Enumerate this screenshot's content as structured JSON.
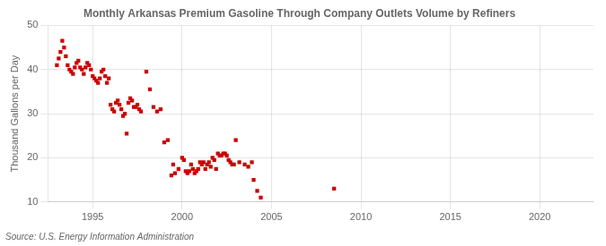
{
  "chart_data": {
    "type": "scatter",
    "title": "Monthly Arkansas Premium Gasoline Through Company Outlets Volume by Refiners",
    "ylabel": "Thousand Gallons per Day",
    "annotations": [
      "Source: U.S. Energy Information Administration"
    ],
    "color": "#cc0000",
    "marker": "square",
    "grid": true,
    "xlim": [
      1992.5,
      2023
    ],
    "ylim": [
      10,
      50
    ],
    "xticks": [
      1995,
      2000,
      2005,
      2010,
      2015,
      2020
    ],
    "yticks": [
      10,
      20,
      30,
      40,
      50
    ],
    "x": [
      1993.0,
      1993.1,
      1993.2,
      1993.3,
      1993.4,
      1993.5,
      1993.6,
      1993.7,
      1993.8,
      1993.9,
      1994.0,
      1994.1,
      1994.2,
      1994.3,
      1994.4,
      1994.5,
      1994.6,
      1994.7,
      1994.8,
      1994.9,
      1995.0,
      1995.1,
      1995.2,
      1995.3,
      1995.4,
      1995.5,
      1995.6,
      1995.7,
      1995.8,
      1995.9,
      1996.0,
      1996.1,
      1996.2,
      1996.3,
      1996.4,
      1996.5,
      1996.6,
      1996.7,
      1996.8,
      1996.9,
      1997.0,
      1997.1,
      1997.2,
      1997.3,
      1997.4,
      1997.5,
      1997.6,
      1997.7,
      1998.0,
      1998.2,
      1998.4,
      1998.6,
      1998.8,
      1999.0,
      1999.2,
      1999.4,
      1999.5,
      1999.6,
      1999.8,
      2000.0,
      2000.1,
      2000.2,
      2000.3,
      2000.4,
      2000.5,
      2000.6,
      2000.7,
      2000.8,
      2000.9,
      2001.0,
      2001.1,
      2001.2,
      2001.3,
      2001.4,
      2001.5,
      2001.6,
      2001.7,
      2001.8,
      2001.9,
      2002.0,
      2002.1,
      2002.2,
      2002.3,
      2002.4,
      2002.5,
      2002.6,
      2002.7,
      2002.8,
      2002.9,
      2003.0,
      2003.2,
      2003.5,
      2003.7,
      2003.9,
      2004.0,
      2004.2,
      2004.4,
      2008.5
    ],
    "values": [
      41.0,
      42.5,
      44.0,
      46.5,
      45.0,
      43.0,
      41.0,
      40.0,
      39.5,
      39.0,
      40.5,
      41.5,
      42.0,
      40.5,
      40.0,
      39.0,
      40.5,
      41.5,
      41.0,
      40.0,
      38.5,
      38.0,
      37.5,
      37.0,
      38.0,
      39.5,
      40.0,
      38.5,
      37.0,
      38.0,
      32.0,
      31.0,
      30.5,
      32.5,
      33.0,
      32.0,
      31.0,
      29.5,
      30.0,
      25.5,
      32.5,
      33.5,
      33.0,
      31.5,
      31.5,
      32.0,
      31.0,
      30.5,
      39.5,
      35.5,
      31.5,
      30.5,
      31.0,
      23.5,
      24.0,
      16.0,
      18.5,
      16.5,
      17.5,
      20.0,
      19.5,
      17.0,
      16.5,
      17.0,
      18.5,
      17.5,
      16.5,
      17.0,
      17.5,
      19.0,
      18.5,
      19.0,
      17.5,
      18.5,
      19.0,
      18.0,
      20.0,
      19.5,
      17.5,
      21.0,
      20.5,
      20.5,
      21.0,
      21.0,
      20.5,
      19.5,
      19.0,
      18.5,
      18.5,
      24.0,
      19.0,
      18.5,
      18.0,
      19.0,
      15.0,
      12.5,
      11.0,
      13.0
    ]
  }
}
